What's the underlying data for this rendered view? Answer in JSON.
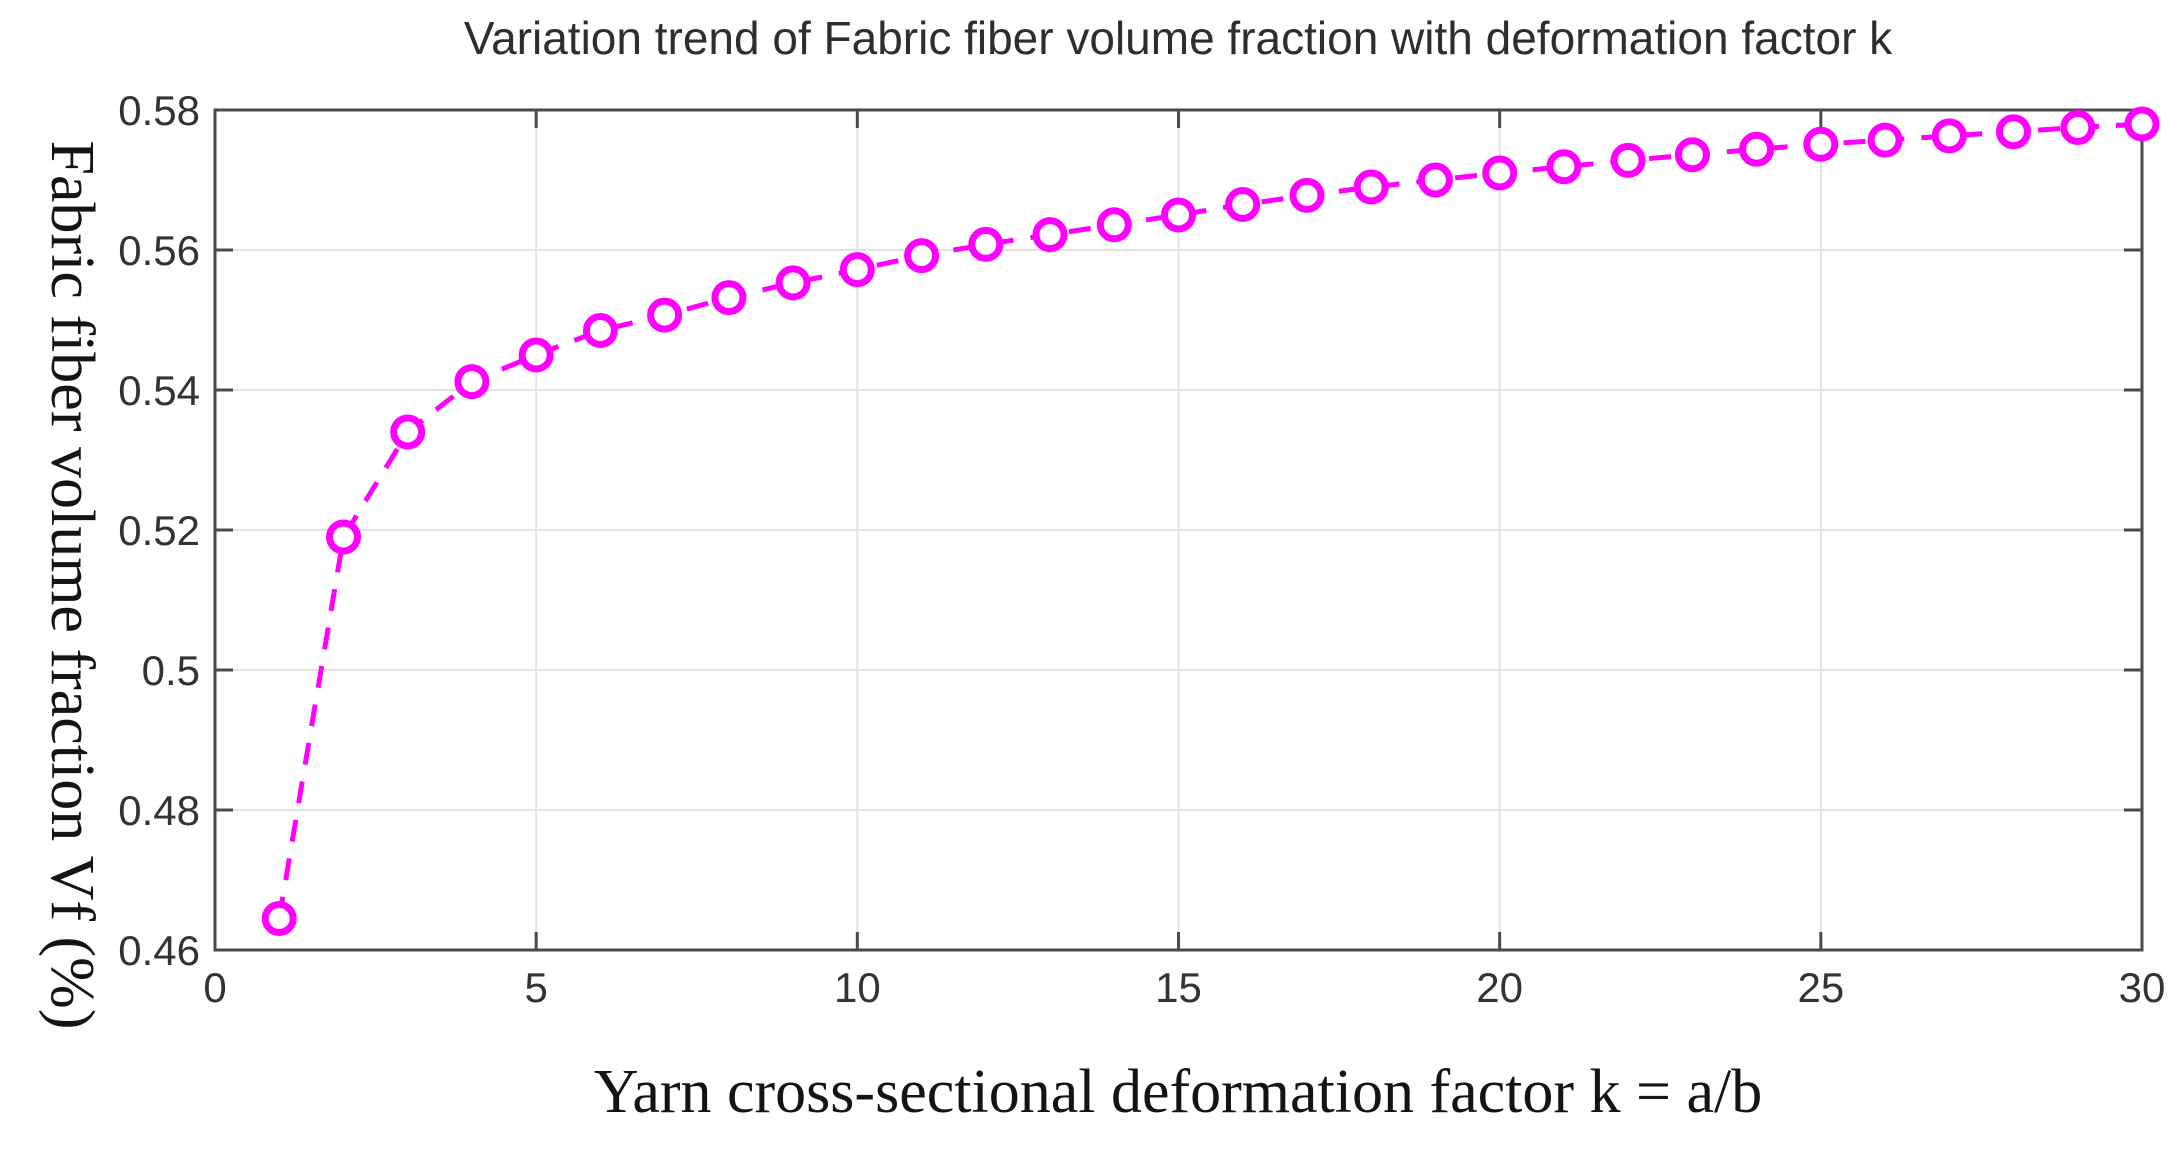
{
  "figure": {
    "background": "#ffffff"
  },
  "chart_data": {
    "type": "line",
    "title": "Variation trend of Fabric fiber volume fraction with deformation factor k",
    "xlabel": "Yarn cross-sectional deformation factor k = a/b",
    "ylabel": "Fabric fiber volume fraction Vf (%)",
    "x": [
      1,
      2,
      3,
      4,
      5,
      6,
      7,
      8,
      9,
      10,
      11,
      12,
      13,
      14,
      15,
      16,
      17,
      18,
      19,
      20,
      21,
      22,
      23,
      24,
      25,
      26,
      27,
      28,
      29,
      30
    ],
    "series": [
      {
        "name": "Fabric fiber volume fraction Vf",
        "values": [
          0.4645,
          0.519,
          0.534,
          0.5412,
          0.545,
          0.5485,
          0.5507,
          0.5532,
          0.5553,
          0.5572,
          0.5592,
          0.5608,
          0.5622,
          0.5636,
          0.565,
          0.5665,
          0.5678,
          0.569,
          0.57,
          0.571,
          0.5719,
          0.5728,
          0.5736,
          0.5744,
          0.5751,
          0.5757,
          0.5763,
          0.5769,
          0.5775,
          0.578
        ]
      }
    ],
    "xlim": [
      0,
      30
    ],
    "ylim": [
      0.46,
      0.58
    ],
    "xticks": {
      "values": [
        0,
        5,
        10,
        15,
        20,
        25,
        30
      ],
      "labels": [
        "0",
        "5",
        "10",
        "15",
        "20",
        "25",
        "30"
      ]
    },
    "yticks": {
      "values": [
        0.46,
        0.48,
        0.5,
        0.52,
        0.54,
        0.56,
        0.58
      ],
      "labels": [
        "0.46",
        "0.48",
        "0.5",
        "0.52",
        "0.54",
        "0.56",
        "0.58"
      ]
    },
    "grid": true,
    "legend": false,
    "line": {
      "color": "#ff00ff",
      "style": "dashed",
      "marker": "circle",
      "marker_fill": "#ffffff"
    },
    "colors": {
      "axis_frame": "#4a4a4a",
      "grid": "#e3e3e3",
      "tick_text": "#333333",
      "label_text": "#141414",
      "title_text": "#2e2e2e"
    }
  }
}
